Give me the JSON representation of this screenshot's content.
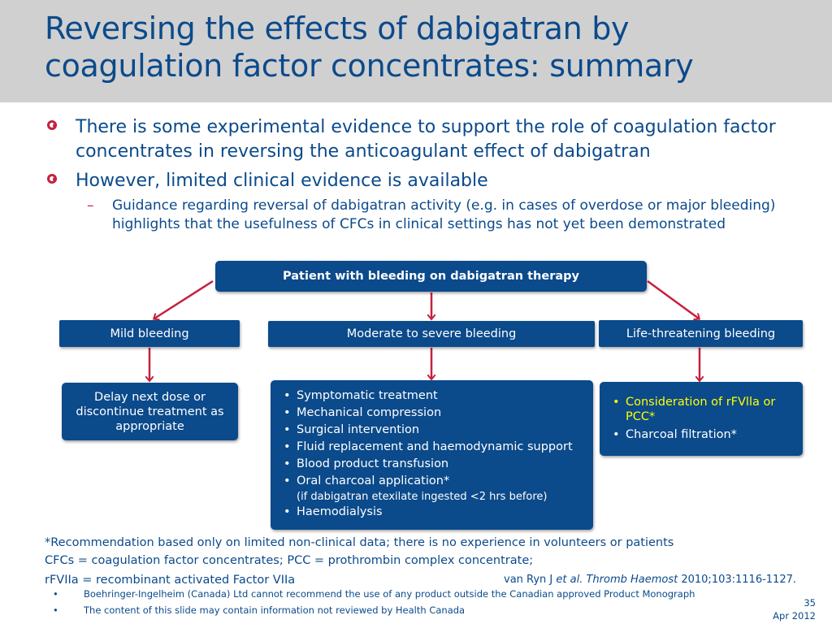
{
  "slide": {
    "title": "Reversing the effects of dabigatran by coagulation factor concentrates: summary",
    "bullets": [
      "There is some experimental evidence to support the role of coagulation factor concentrates in reversing the anticoagulant effect of dabigatran",
      "However, limited clinical evidence is available"
    ],
    "sub_bullet": "Guidance regarding reversal of dabigatran activity (e.g. in cases of overdose or major bleeding) highlights that the usefulness of CFCs in clinical settings has not yet been demonstrated",
    "sub_dash": "–"
  },
  "flow": {
    "top": "Patient with bleeding on dabigatran therapy",
    "mild": "Mild bleeding",
    "moderate": "Moderate to severe bleeding",
    "life": "Life-threatening bleeding",
    "mild_action": "Delay next dose or discontinue treatment as appropriate",
    "moderate_actions": [
      "Symptomatic treatment",
      "Mechanical compression",
      "Surgical intervention",
      "Fluid replacement and haemodynamic support",
      "Blood product transfusion",
      "Oral charcoal application*",
      "Haemodialysis"
    ],
    "charcoal_note": "(if dabigatran etexilate ingested <2 hrs before)",
    "life_actions": [
      "Consideration of rFVlla or PCC*",
      "Charcoal filtration*"
    ],
    "highlight_color": "#ffff00"
  },
  "footer": {
    "note1": "*Recommendation based only on limited non-clinical data; there is no experience in volunteers or patients",
    "note2": "CFCs = coagulation factor concentrates; PCC = prothrombin complex concentrate;",
    "note3": "rFVIIa = recombinant activated Factor VIIa",
    "ref_author": "van Ryn J ",
    "ref_etal": "et al. Thromb Haemost",
    "ref_rest": " 2010;103:1116-1127.",
    "disclaimer1": "Boehringer-Ingelheim (Canada) Ltd cannot recommend the use of any product outside the Canadian approved Product Monograph",
    "disclaimer2": "The content of this slide may contain information not reviewed by Health Canada",
    "small_bullet": "•",
    "page_number": "35",
    "date": "Apr 2012"
  },
  "colors": {
    "header_bg": "#d0d0d0",
    "brand_blue": "#0b4a8b",
    "accent_red": "#c6203f"
  }
}
